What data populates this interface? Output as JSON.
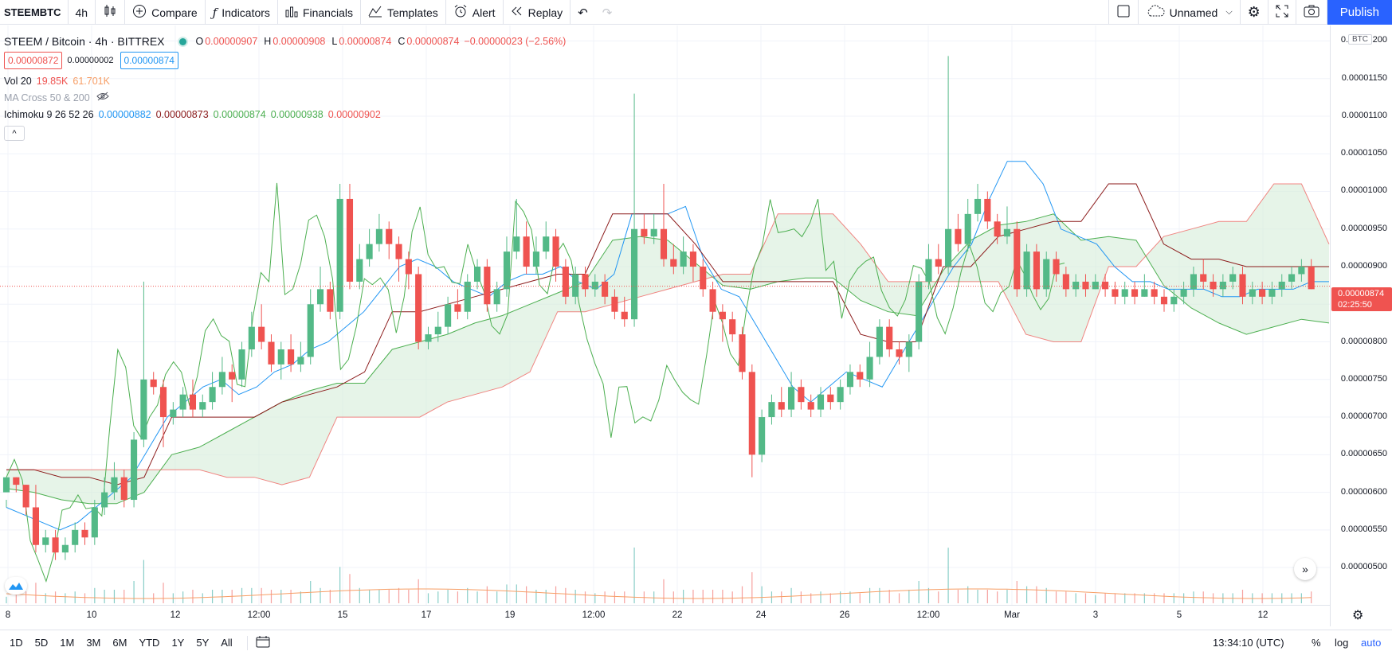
{
  "toolbar": {
    "symbol": "STEEMBTC",
    "interval": "4h",
    "compare": "Compare",
    "indicators": "Indicators",
    "financials": "Financials",
    "templates": "Templates",
    "alert": "Alert",
    "replay": "Replay",
    "layout_name": "Unnamed",
    "publish": "Publish"
  },
  "legend": {
    "title": "STEEM / Bitcoin · 4h · BITTREX",
    "ohlc": {
      "o_label": "O",
      "o": "0.00000907",
      "h_label": "H",
      "h": "0.00000908",
      "l_label": "L",
      "l": "0.00000874",
      "c_label": "C",
      "c": "0.00000874",
      "change": "−0.00000023 (−2.56%)"
    },
    "bid": "0.00000872",
    "spread": "0.00000002",
    "ask": "0.00000874",
    "vol": {
      "name": "Vol 20",
      "v1": "19.85K",
      "v2": "61.701K"
    },
    "ma_cross": {
      "name": "MA Cross 50 & 200"
    },
    "ichimoku": {
      "name": "Ichimoku 9 26 52 26",
      "v1": "0.00000882",
      "v2": "0.00000873",
      "v3": "0.00000874",
      "v4": "0.00000938",
      "v5": "0.00000902"
    }
  },
  "price_scale": {
    "currency": "BTC",
    "ticks": [
      "0.00001200",
      "0.00001150",
      "0.00001100",
      "0.00001050",
      "0.00001000",
      "0.00000950",
      "0.00000900",
      "0.00000850",
      "0.00000800",
      "0.00000750",
      "0.00000700",
      "0.00000650",
      "0.00000600",
      "0.00000550",
      "0.00000500"
    ],
    "current_price": "0.00000874",
    "countdown": "02:25:50"
  },
  "time_scale": {
    "ticks": [
      "8",
      "10",
      "12",
      "12:00",
      "15",
      "17",
      "19",
      "12:00",
      "22",
      "24",
      "26",
      "12:00",
      "Mar",
      "3",
      "5",
      "12"
    ]
  },
  "bottom_bar": {
    "ranges": [
      "1D",
      "5D",
      "1M",
      "3M",
      "6M",
      "YTD",
      "1Y",
      "5Y",
      "All"
    ],
    "clock": "13:34:10 (UTC)",
    "percent": "%",
    "log": "log",
    "auto": "auto"
  },
  "colors": {
    "up": "#26a69a",
    "up_candle": "#53b987",
    "down": "#ef5350",
    "conversion": "#2196f3",
    "base": "#8b1a1a",
    "lagging": "#4caf50",
    "cloud_up": "#d6ecd8",
    "cloud_down": "#fbdede",
    "volume_ma": "#f79e65"
  },
  "chart_data": {
    "type": "candlestick",
    "y_axis": {
      "min": 4.8e-06,
      "max": 1.21e-05
    },
    "candles": [
      [
        6e-06,
        6.2e-06,
        5.9e-06,
        5.8e-06
      ],
      [
        6.2e-06,
        6.1e-06,
        6.2e-06,
        6e-06
      ],
      [
        6.1e-06,
        5.8e-06,
        6.1e-06,
        5.7e-06
      ],
      [
        5.8e-06,
        5.3e-06,
        6.1e-06,
        5.2e-06
      ],
      [
        5.3e-06,
        5.4e-06,
        5.5e-06,
        5.2e-06
      ],
      [
        5.4e-06,
        5.2e-06,
        5.5e-06,
        5.1e-06
      ],
      [
        5.2e-06,
        5.3e-06,
        5.4e-06,
        5.1e-06
      ],
      [
        5.3e-06,
        5.5e-06,
        5.6e-06,
        5.2e-06
      ],
      [
        5.5e-06,
        5.4e-06,
        5.6e-06,
        5.3e-06
      ],
      [
        5.4e-06,
        5.8e-06,
        5.9e-06,
        5.3e-06
      ],
      [
        5.8e-06,
        6e-06,
        6.2e-06,
        5.7e-06
      ],
      [
        6e-06,
        6.2e-06,
        6.4e-06,
        5.9e-06
      ],
      [
        6.2e-06,
        5.9e-06,
        6.3e-06,
        5.8e-06
      ],
      [
        5.9e-06,
        6.7e-06,
        6.8e-06,
        5.8e-06
      ],
      [
        6.7e-06,
        7.5e-06,
        8.8e-06,
        6.6e-06
      ],
      [
        7.5e-06,
        7.4e-06,
        7.6e-06,
        7.3e-06
      ],
      [
        7.4e-06,
        7e-06,
        7.5e-06,
        6.6e-06
      ],
      [
        7e-06,
        7.1e-06,
        7.2e-06,
        6.9e-06
      ],
      [
        7.1e-06,
        7.3e-06,
        7.4e-06,
        7e-06
      ],
      [
        7.3e-06,
        7.1e-06,
        7.5e-06,
        7e-06
      ],
      [
        7.1e-06,
        7.2e-06,
        7.3e-06,
        7e-06
      ],
      [
        7.2e-06,
        7.4e-06,
        7.6e-06,
        7.1e-06
      ],
      [
        7.4e-06,
        7.6e-06,
        7.8e-06,
        7.3e-06
      ],
      [
        7.6e-06,
        7.5e-06,
        7.7e-06,
        7.2e-06
      ],
      [
        7.5e-06,
        7.9e-06,
        8e-06,
        7.4e-06
      ],
      [
        7.9e-06,
        8.2e-06,
        8.4e-06,
        7.8e-06
      ],
      [
        8.2e-06,
        8e-06,
        8.5e-06,
        7.9e-06
      ],
      [
        8e-06,
        7.7e-06,
        8.1e-06,
        7.6e-06
      ],
      [
        7.7e-06,
        7.9e-06,
        8e-06,
        7.5e-06
      ],
      [
        7.9e-06,
        7.7e-06,
        8.1e-06,
        7.6e-06
      ],
      [
        7.7e-06,
        7.8e-06,
        8e-06,
        7.6e-06
      ],
      [
        7.8e-06,
        8.5e-06,
        8.7e-06,
        7.7e-06
      ],
      [
        8.5e-06,
        8.7e-06,
        9e-06,
        8.4e-06
      ],
      [
        8.7e-06,
        8.4e-06,
        8.8e-06,
        8.3e-06
      ],
      [
        8.4e-06,
        9.9e-06,
        1.01e-05,
        8.3e-06
      ],
      [
        9.9e-06,
        8.8e-06,
        1.01e-05,
        8.7e-06
      ],
      [
        8.8e-06,
        9.1e-06,
        9.3e-06,
        8.7e-06
      ],
      [
        9.1e-06,
        9.3e-06,
        9.5e-06,
        9e-06
      ],
      [
        9.3e-06,
        9.5e-06,
        9.7e-06,
        9.2e-06
      ],
      [
        9.5e-06,
        9.3e-06,
        9.6e-06,
        9.1e-06
      ],
      [
        9.3e-06,
        9.1e-06,
        9.4e-06,
        8.8e-06
      ],
      [
        9.1e-06,
        8.9e-06,
        9.2e-06,
        8.7e-06
      ],
      [
        8.9e-06,
        8e-06,
        9e-06,
        7.9e-06
      ],
      [
        8e-06,
        8.1e-06,
        8.2e-06,
        7.9e-06
      ],
      [
        8.1e-06,
        8.2e-06,
        8.4e-06,
        8e-06
      ],
      [
        8.2e-06,
        8.5e-06,
        8.6e-06,
        8.1e-06
      ],
      [
        8.5e-06,
        8.4e-06,
        8.7e-06,
        8.3e-06
      ],
      [
        8.4e-06,
        8.8e-06,
        8.9e-06,
        8.3e-06
      ],
      [
        8.8e-06,
        9e-06,
        9.1e-06,
        8.7e-06
      ],
      [
        9e-06,
        8.5e-06,
        9.1e-06,
        8.4e-06
      ],
      [
        8.5e-06,
        8.7e-06,
        8.8e-06,
        8.4e-06
      ],
      [
        8.7e-06,
        9.2e-06,
        9.4e-06,
        8.6e-06
      ],
      [
        9.2e-06,
        9.4e-06,
        9.9e-06,
        9.1e-06
      ],
      [
        9.4e-06,
        9e-06,
        9.6e-06,
        8.9e-06
      ],
      [
        9e-06,
        9.2e-06,
        9.4e-06,
        8.9e-06
      ],
      [
        9.2e-06,
        9.4e-06,
        9.6e-06,
        9.1e-06
      ],
      [
        9.4e-06,
        9e-06,
        9.5e-06,
        8.8e-06
      ],
      [
        9e-06,
        8.6e-06,
        9.1e-06,
        8.5e-06
      ],
      [
        8.6e-06,
        8.9e-06,
        9e-06,
        8.5e-06
      ],
      [
        8.9e-06,
        8.7e-06,
        9e-06,
        8.6e-06
      ],
      [
        8.7e-06,
        8.8e-06,
        8.9e-06,
        8.6e-06
      ],
      [
        8.8e-06,
        8.6e-06,
        8.9e-06,
        8.5e-06
      ],
      [
        8.6e-06,
        8.4e-06,
        8.7e-06,
        8.3e-06
      ],
      [
        8.4e-06,
        8.3e-06,
        8.6e-06,
        8.2e-06
      ],
      [
        8.3e-06,
        9.5e-06,
        1.13e-05,
        8.2e-06
      ],
      [
        9.5e-06,
        9.4e-06,
        9.7e-06,
        9.3e-06
      ],
      [
        9.4e-06,
        9.5e-06,
        9.7e-06,
        9.3e-06
      ],
      [
        9.5e-06,
        9.1e-06,
        1.01e-05,
        9e-06
      ],
      [
        9.1e-06,
        9e-06,
        9.3e-06,
        8.9e-06
      ],
      [
        9e-06,
        9.2e-06,
        9.4e-06,
        8.9e-06
      ],
      [
        9.2e-06,
        9e-06,
        9.3e-06,
        8.8e-06
      ],
      [
        9e-06,
        8.7e-06,
        9.1e-06,
        8.6e-06
      ],
      [
        8.7e-06,
        8.4e-06,
        8.8e-06,
        8.3e-06
      ],
      [
        8.4e-06,
        8.3e-06,
        8.5e-06,
        8e-06
      ],
      [
        8.3e-06,
        8.1e-06,
        8.4e-06,
        8e-06
      ],
      [
        8.1e-06,
        7.6e-06,
        8.2e-06,
        7.5e-06
      ],
      [
        7.6e-06,
        6.5e-06,
        7.7e-06,
        6.2e-06
      ],
      [
        6.5e-06,
        7e-06,
        7.1e-06,
        6.4e-06
      ],
      [
        7e-06,
        7.2e-06,
        7.3e-06,
        6.9e-06
      ],
      [
        7.2e-06,
        7.1e-06,
        7.4e-06,
        7e-06
      ],
      [
        7.1e-06,
        7.4e-06,
        7.6e-06,
        7e-06
      ],
      [
        7.4e-06,
        7.2e-06,
        7.5e-06,
        7.1e-06
      ],
      [
        7.2e-06,
        7.1e-06,
        7.3e-06,
        7e-06
      ],
      [
        7.1e-06,
        7.3e-06,
        7.4e-06,
        7e-06
      ],
      [
        7.3e-06,
        7.2e-06,
        7.4e-06,
        7.1e-06
      ],
      [
        7.2e-06,
        7.4e-06,
        7.5e-06,
        7.1e-06
      ],
      [
        7.4e-06,
        7.6e-06,
        7.7e-06,
        7.3e-06
      ],
      [
        7.6e-06,
        7.5e-06,
        7.7e-06,
        7.4e-06
      ],
      [
        7.5e-06,
        7.8e-06,
        8e-06,
        7.4e-06
      ],
      [
        7.8e-06,
        8.2e-06,
        8.3e-06,
        7.7e-06
      ],
      [
        8.2e-06,
        7.9e-06,
        8.3e-06,
        7.8e-06
      ],
      [
        7.9e-06,
        7.8e-06,
        8e-06,
        7.7e-06
      ],
      [
        7.8e-06,
        8e-06,
        8.1e-06,
        7.6e-06
      ],
      [
        8e-06,
        8.8e-06,
        8.9e-06,
        7.9e-06
      ],
      [
        8.8e-06,
        9.1e-06,
        9.3e-06,
        8.7e-06
      ],
      [
        9.1e-06,
        9e-06,
        9.3e-06,
        8.9e-06
      ],
      [
        9e-06,
        9.5e-06,
        1.18e-05,
        8.9e-06
      ],
      [
        9.5e-06,
        9.3e-06,
        9.7e-06,
        9.2e-06
      ],
      [
        9.3e-06,
        9.7e-06,
        9.9e-06,
        9.2e-06
      ],
      [
        9.7e-06,
        9.9e-06,
        1.01e-05,
        9.6e-06
      ],
      [
        9.9e-06,
        9.6e-06,
        1e-05,
        9.5e-06
      ],
      [
        9.6e-06,
        9.4e-06,
        9.7e-06,
        9.3e-06
      ],
      [
        9.4e-06,
        9.5e-06,
        9.8e-06,
        9.3e-06
      ],
      [
        9.5e-06,
        8.7e-06,
        9.6e-06,
        8.6e-06
      ],
      [
        8.7e-06,
        9.2e-06,
        9.3e-06,
        8.6e-06
      ],
      [
        9.2e-06,
        8.7e-06,
        9.3e-06,
        8.6e-06
      ],
      [
        8.7e-06,
        9.1e-06,
        9.2e-06,
        8.6e-06
      ],
      [
        9.1e-06,
        8.9e-06,
        9.2e-06,
        8.8e-06
      ],
      [
        8.9e-06,
        8.7e-06,
        9e-06,
        8.6e-06
      ],
      [
        8.7e-06,
        8.8e-06,
        8.9e-06,
        8.6e-06
      ],
      [
        8.8e-06,
        8.7e-06,
        8.9e-06,
        8.6e-06
      ],
      [
        8.7e-06,
        8.8e-06,
        8.9e-06,
        8.7e-06
      ],
      [
        8.8e-06,
        8.7e-06,
        8.9e-06,
        8.6e-06
      ],
      [
        8.7e-06,
        8.6e-06,
        8.8e-06,
        8.5e-06
      ],
      [
        8.6e-06,
        8.7e-06,
        8.8e-06,
        8.5e-06
      ],
      [
        8.7e-06,
        8.6e-06,
        8.8e-06,
        8.5e-06
      ],
      [
        8.6e-06,
        8.7e-06,
        8.9e-06,
        8.6e-06
      ],
      [
        8.7e-06,
        8.6e-06,
        8.8e-06,
        8.5e-06
      ],
      [
        8.6e-06,
        8.5e-06,
        8.7e-06,
        8.4e-06
      ],
      [
        8.5e-06,
        8.6e-06,
        8.7e-06,
        8.4e-06
      ],
      [
        8.6e-06,
        8.7e-06,
        8.8e-06,
        8.5e-06
      ],
      [
        8.7e-06,
        8.9e-06,
        9e-06,
        8.6e-06
      ],
      [
        8.9e-06,
        8.8e-06,
        9.1e-06,
        8.7e-06
      ],
      [
        8.8e-06,
        8.7e-06,
        8.9e-06,
        8.6e-06
      ],
      [
        8.7e-06,
        8.8e-06,
        8.9e-06,
        8.6e-06
      ],
      [
        8.8e-06,
        8.9e-06,
        9e-06,
        8.7e-06
      ],
      [
        8.9e-06,
        8.6e-06,
        9e-06,
        8.5e-06
      ],
      [
        8.6e-06,
        8.7e-06,
        8.8e-06,
        8.5e-06
      ],
      [
        8.7e-06,
        8.6e-06,
        8.8e-06,
        8.5e-06
      ],
      [
        8.6e-06,
        8.7e-06,
        8.8e-06,
        8.5e-06
      ],
      [
        8.7e-06,
        8.8e-06,
        8.9e-06,
        8.6e-06
      ],
      [
        8.8e-06,
        8.9e-06,
        9e-06,
        8.7e-06
      ],
      [
        8.9e-06,
        9e-06,
        9.1e-06,
        8.8e-06
      ],
      [
        9e-06,
        8.7e-06,
        9.1e-06,
        8.7e-06
      ]
    ],
    "conversion": [
      5.8e-06,
      5.7e-06,
      5.6e-06,
      5.5e-06,
      5.6e-06,
      5.8e-06,
      6e-06,
      6.2e-06,
      6.6e-06,
      7e-06,
      7.2e-06,
      7.4e-06,
      7.5e-06,
      7.3e-06,
      7.4e-06,
      7.6e-06,
      7.7e-06,
      7.9e-06,
      8e-06,
      8.2e-06,
      8.4e-06,
      8.7e-06,
      9e-06,
      9.1e-06,
      9e-06,
      8.8e-06,
      8.7e-06,
      8.6e-06,
      8.8e-06,
      8.9e-06,
      8.9e-06,
      9e-06,
      8.8e-06,
      8.7e-06,
      8.9e-06,
      9.7e-06,
      9.7e-06,
      9.7e-06,
      9.8e-06,
      9.1e-06,
      8.7e-06,
      8.6e-06,
      8.2e-06,
      7.8e-06,
      7.4e-06,
      7.2e-06,
      7.4e-06,
      7.6e-06,
      7.5e-06,
      7.4e-06,
      7.8e-06,
      8.2e-06,
      8.6e-06,
      9e-06,
      9.3e-06,
      9.9e-06,
      1.04e-05,
      1.04e-05,
      1.01e-05,
      9.5e-06,
      9.4e-06,
      9.3e-06,
      9e-06,
      8.8e-06,
      8.8e-06,
      8.7e-06,
      8.7e-06,
      8.7e-06,
      8.6e-06,
      8.6e-06,
      8.7e-06,
      8.7e-06,
      8.7e-06,
      8.8e-06,
      8.8e-06
    ],
    "base": [
      6.3e-06,
      6.3e-06,
      6.2e-06,
      6.2e-06,
      6.1e-06,
      6.2e-06,
      7e-06,
      7e-06,
      7e-06,
      7e-06,
      7.2e-06,
      7.3e-06,
      7.4e-06,
      7.6e-06,
      8.4e-06,
      8.4e-06,
      8.5e-06,
      8.6e-06,
      8.7e-06,
      8.8e-06,
      8.9e-06,
      8.9e-06,
      9.7e-06,
      9.7e-06,
      9.7e-06,
      9.3e-06,
      8.8e-06,
      8.8e-06,
      8.8e-06,
      8.8e-06,
      8.8e-06,
      8.1e-06,
      8e-06,
      8e-06,
      9e-06,
      9e-06,
      9.4e-06,
      9.5e-06,
      9.6e-06,
      9.6e-06,
      1.01e-05,
      1.01e-05,
      9.3e-06,
      9.1e-06,
      9.1e-06,
      9e-06,
      9e-06,
      9e-06,
      9e-06
    ]
  }
}
